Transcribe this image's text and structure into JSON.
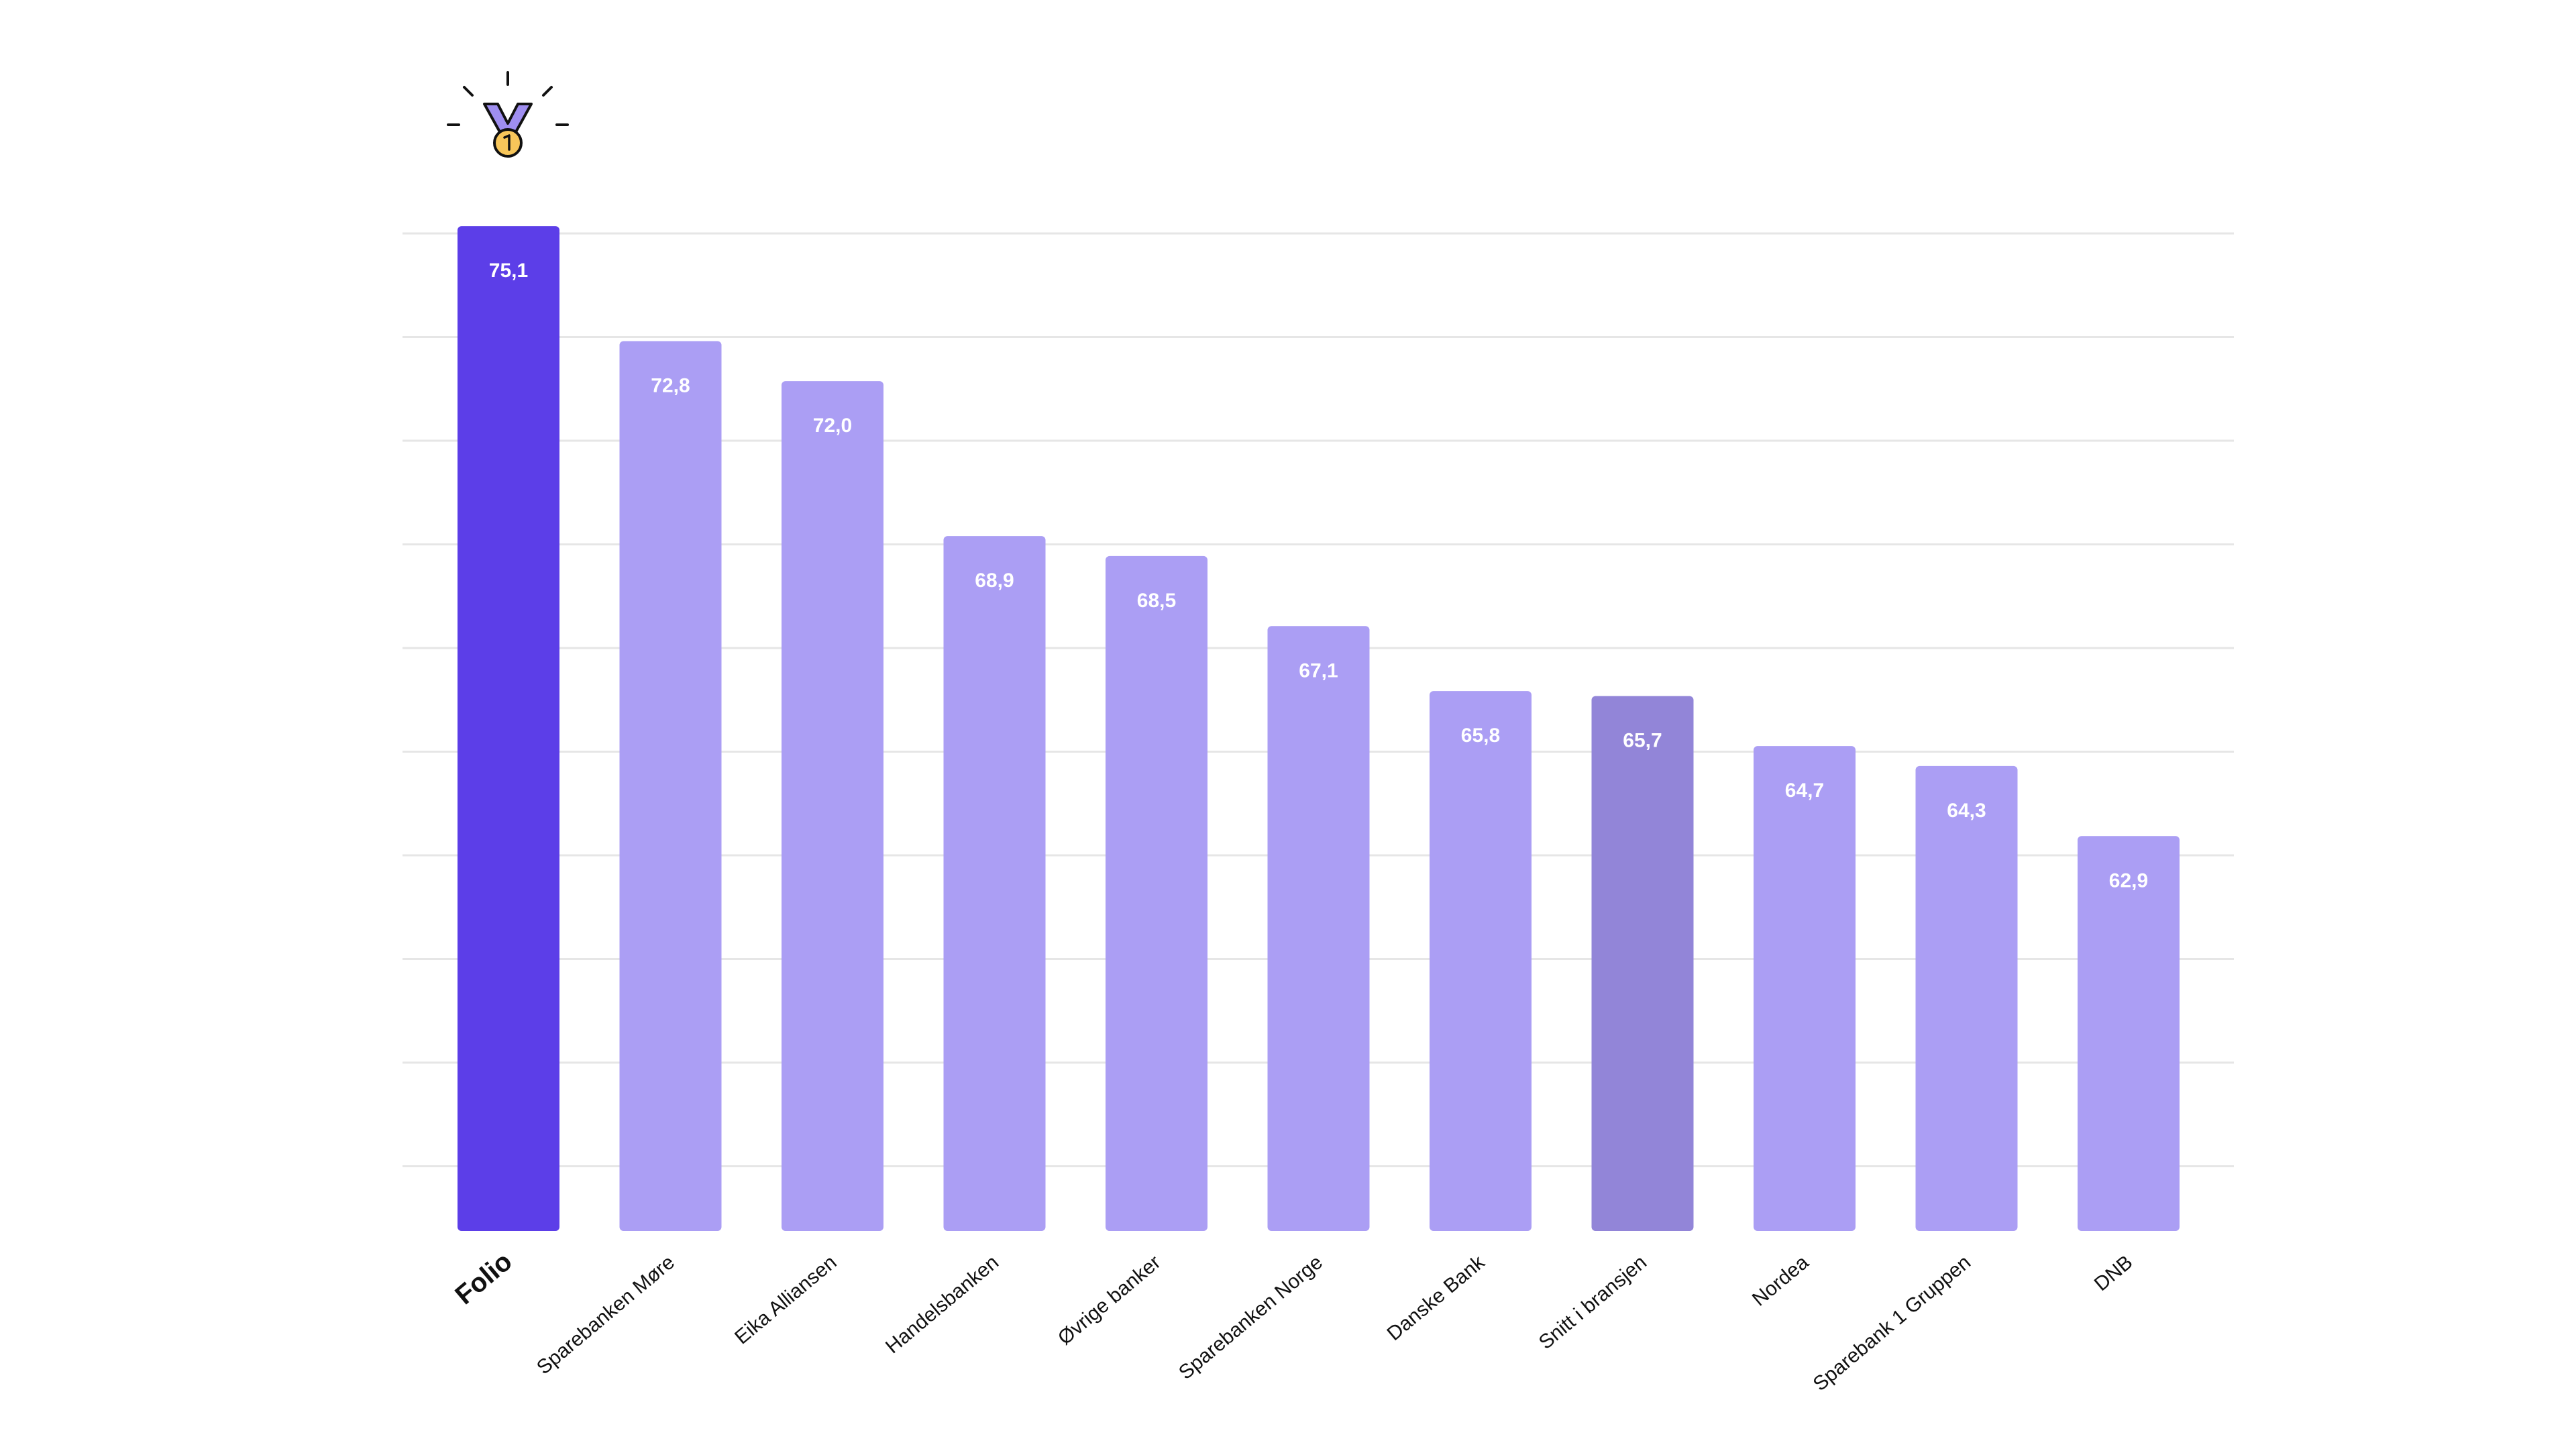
{
  "chart_data": {
    "type": "bar",
    "categories": [
      "Folio",
      "Sparebanken Møre",
      "Eika Alliansen",
      "Handelsbanken",
      "Øvrige banker",
      "Sparebanken Norge",
      "Danske Bank",
      "Snitt i bransjen",
      "Nordea",
      "Sparebank 1 Gruppen",
      "DNB"
    ],
    "values": [
      75.1,
      72.8,
      72.0,
      68.9,
      68.5,
      67.1,
      65.8,
      65.7,
      64.7,
      64.3,
      62.9
    ],
    "value_labels": [
      "75,1",
      "72,8",
      "72,0",
      "68,9",
      "68,5",
      "67,1",
      "65,8",
      "65,7",
      "64,7",
      "64,3",
      "62,9"
    ],
    "title": "",
    "xlabel": "",
    "ylabel": "",
    "ylim": [
      55,
      76
    ],
    "grid": true,
    "legend": "none",
    "highlight_category": "Folio",
    "highlight_icon": "gold-medal-icon",
    "colors": {
      "highlight": "#5c3ee8",
      "default": "#ab9ef4",
      "average": "#9285d8",
      "grid": "#e6e6e6",
      "value_label": "#ffffff",
      "category_label": "#111111",
      "medal_ribbon": "#9f8ef0",
      "medal_gold": "#f7c65a"
    },
    "bar_colors": [
      "highlight",
      "default",
      "default",
      "default",
      "default",
      "default",
      "default",
      "average",
      "default",
      "default",
      "default"
    ]
  }
}
